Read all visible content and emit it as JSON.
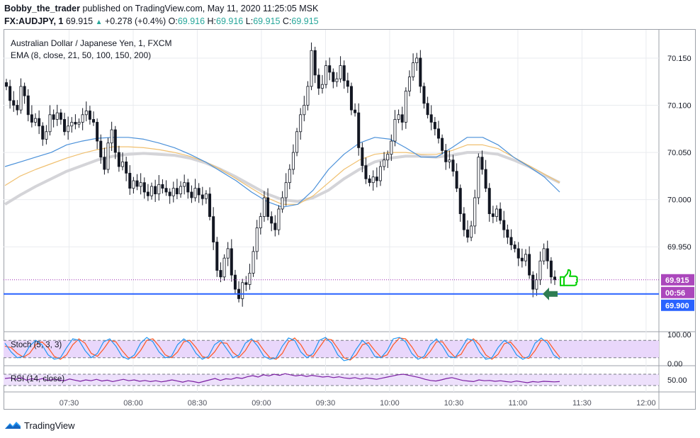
{
  "header": {
    "author": "Bobby_the_trader",
    "published": "published on TradingView.com, May 11, 2020 11:25:05 MSK",
    "symbol": "FX:AUDJPY, 1",
    "last": "69.915",
    "change": "+0.278 (+0.4%)",
    "o_label": "O:",
    "o_value": "69.916",
    "h_label": "H:",
    "h_value": "69.916",
    "l_label": "L:",
    "l_value": "69.915",
    "c_label": "C:",
    "c_value": "69.915"
  },
  "footer": {
    "brand": "TradingView"
  },
  "colors": {
    "up_candle": "#ffffff",
    "down_candle": "#131722",
    "wick": "#131722",
    "ema_fast": "#4a90d9",
    "ema_mid": "#f0c070",
    "ema_slow": "#d4d4d8",
    "support_line": "#2962ff",
    "price_line": "#9c27b0",
    "stoch_k": "#2196f3",
    "stoch_d": "#ff5722",
    "stoch_band": "#e9d7fb",
    "rsi": "#7b1fa2",
    "rsi_band": "#ede0fb",
    "badge_price": "#ab47bc",
    "badge_level": "#2962ff",
    "thumb": "#00d000",
    "arrow": "#2e7d52"
  },
  "chart_data": {
    "type": "candlestick",
    "title": "Australian Dollar / Japanese Yen, 1, FXCM",
    "indicator_label": "EMA (8, close, 21, 50, 100, 150, 200)",
    "ylim": [
      69.86,
      70.18
    ],
    "y_ticks": [
      "70.150",
      "70.100",
      "70.050",
      "70.000",
      "69.950",
      "69.900"
    ],
    "x_ticks": [
      "07:30",
      "08:00",
      "08:30",
      "09:00",
      "09:30",
      "10:00",
      "10:30",
      "11:00",
      "11:30",
      "12:00"
    ],
    "x_range_minutes": [
      7.0,
      12.1
    ],
    "price_badge": "69.915",
    "countdown_badge": "00:56",
    "level_badge": "69.900",
    "support_level": 69.9,
    "closes": [
      70.12,
      70.105,
      70.1,
      70.095,
      70.12,
      70.11,
      70.09,
      70.082,
      70.086,
      70.078,
      70.064,
      70.072,
      70.09,
      70.085,
      70.092,
      70.085,
      70.072,
      70.078,
      70.082,
      70.08,
      70.082,
      70.09,
      70.094,
      70.085,
      70.082,
      70.062,
      70.045,
      70.032,
      70.06,
      70.074,
      70.05,
      70.035,
      70.04,
      70.028,
      70.012,
      70.02,
      70.014,
      70.018,
      70.008,
      70.004,
      70.014,
      70.006,
      70.016,
      70.012,
      70.008,
      70.004,
      70.012,
      70.006,
      70.014,
      70.018,
      70.008,
      70.002,
      70.012,
      70.005,
      70.001,
      70.006,
      69.982,
      69.955,
      69.925,
      69.918,
      69.938,
      69.948,
      69.92,
      69.905,
      69.895,
      69.912,
      69.91,
      69.922,
      69.945,
      69.97,
      69.982,
      70.002,
      69.982,
      69.975,
      69.968,
      69.99,
      70.002,
      70.018,
      70.032,
      70.05,
      70.072,
      70.09,
      70.1,
      70.12,
      70.158,
      70.132,
      70.118,
      70.122,
      70.142,
      70.135,
      70.125,
      70.128,
      70.142,
      70.126,
      70.12,
      70.095,
      70.092,
      70.055,
      70.036,
      70.022,
      70.018,
      70.024,
      70.02,
      70.035,
      70.042,
      70.048,
      70.062,
      70.085,
      70.09,
      70.082,
      70.115,
      70.13,
      70.145,
      70.15,
      70.12,
      70.102,
      70.09,
      70.082,
      70.075,
      70.065,
      70.052,
      70.04,
      70.042,
      70.03,
      70.012,
      69.985,
      69.968,
      69.96,
      69.972,
      70.002,
      70.045,
      70.032,
      70.012,
      69.985,
      69.982,
      69.99,
      69.978,
      69.968,
      69.96,
      69.952,
      69.948,
      69.938,
      69.935,
      69.942,
      69.92,
      69.905,
      69.915,
      69.935,
      69.948,
      69.935,
      69.918,
      69.915
    ],
    "ema_fast": [
      70.035,
      70.04,
      70.045,
      70.05,
      70.058,
      70.062,
      70.065,
      70.066,
      70.066,
      70.064,
      70.06,
      70.055,
      70.048,
      70.04,
      70.03,
      70.02,
      70.008,
      69.998,
      69.992,
      69.995,
      70.01,
      70.032,
      70.048,
      70.06,
      70.066,
      70.064,
      70.055,
      70.045,
      70.045,
      70.055,
      70.066,
      70.066,
      70.058,
      70.045,
      70.035,
      70.024,
      70.008
    ],
    "ema_mid": [
      70.015,
      70.025,
      70.032,
      70.038,
      70.044,
      70.049,
      70.053,
      70.056,
      70.056,
      70.055,
      70.053,
      70.05,
      70.046,
      70.04,
      70.032,
      70.022,
      70.012,
      70.002,
      69.995,
      69.995,
      70.004,
      70.018,
      70.032,
      70.042,
      70.048,
      70.05,
      70.05,
      70.048,
      70.048,
      70.052,
      70.058,
      70.058,
      70.054,
      70.045,
      70.036,
      70.027,
      70.018
    ],
    "ema_slow": [
      69.995,
      70.005,
      70.014,
      70.022,
      70.03,
      70.036,
      70.042,
      70.046,
      70.048,
      70.049,
      70.048,
      70.047,
      70.044,
      70.039,
      70.032,
      70.024,
      70.015,
      70.006,
      70.0,
      69.998,
      70.002,
      70.01,
      70.022,
      70.032,
      70.04,
      70.044,
      70.046,
      70.046,
      70.045,
      70.047,
      70.05,
      70.05,
      70.048,
      70.042,
      70.035,
      70.026,
      70.018
    ],
    "stoch": {
      "label": "Stoch (5, 3, 3)",
      "ylim": [
        0,
        100
      ],
      "y_ticks": [
        "100.00",
        "0.00"
      ],
      "band": [
        20,
        80
      ],
      "k": [
        70,
        40,
        20,
        25,
        60,
        80,
        65,
        30,
        15,
        20,
        55,
        85,
        80,
        45,
        20,
        35,
        75,
        85,
        60,
        25,
        15,
        30,
        70,
        90,
        75,
        40,
        20,
        25,
        65,
        85,
        70,
        35,
        15,
        25,
        65,
        80,
        50,
        20,
        30,
        70,
        85,
        60,
        25,
        15,
        20,
        60,
        88,
        80,
        40,
        20,
        35,
        80,
        90,
        70,
        30,
        10,
        15,
        50,
        80,
        60,
        25,
        20,
        45,
        85,
        90,
        75,
        35,
        15,
        25,
        65,
        85,
        60,
        25,
        20,
        50,
        85,
        80,
        40,
        15,
        20,
        55,
        80,
        65,
        30,
        15,
        25,
        70,
        88,
        70,
        30,
        15
      ],
      "d": [
        60,
        55,
        35,
        22,
        35,
        65,
        75,
        55,
        25,
        15,
        30,
        65,
        85,
        70,
        35,
        25,
        50,
        80,
        75,
        45,
        20,
        20,
        45,
        80,
        85,
        60,
        30,
        20,
        40,
        75,
        80,
        55,
        25,
        18,
        40,
        72,
        70,
        38,
        22,
        45,
        80,
        75,
        45,
        20,
        15,
        35,
        75,
        88,
        65,
        30,
        25,
        55,
        85,
        82,
        52,
        20,
        12,
        30,
        65,
        72,
        45,
        22,
        30,
        65,
        88,
        85,
        58,
        25,
        18,
        42,
        75,
        75,
        45,
        22,
        32,
        68,
        85,
        65,
        30,
        15,
        32,
        68,
        75,
        50,
        22,
        18,
        45,
        80,
        80,
        50,
        22
      ]
    },
    "rsi": {
      "label": "RSI (14, close)",
      "ylim": [
        0,
        100
      ],
      "y_ticks": [
        "50.00"
      ],
      "band": [
        30,
        70
      ],
      "values": [
        55,
        57,
        52,
        58,
        49,
        54,
        50,
        55,
        48,
        52,
        50,
        47,
        53,
        49,
        45,
        50,
        47,
        52,
        46,
        49,
        44,
        48,
        52,
        47,
        50,
        45,
        48,
        44,
        47,
        43,
        46,
        50,
        46,
        42,
        47,
        44,
        40,
        45,
        50,
        55,
        48,
        54,
        52,
        58,
        55,
        61,
        65,
        60,
        68,
        64,
        70,
        66,
        72,
        68,
        64,
        67,
        62,
        66,
        63,
        60,
        62,
        58,
        61,
        57,
        55,
        58,
        53,
        57,
        55,
        52,
        56,
        60,
        64,
        68,
        70,
        66,
        62,
        58,
        52,
        48,
        46,
        50,
        55,
        58,
        53,
        48,
        46,
        44,
        50,
        47,
        48,
        45,
        47,
        44,
        42,
        46,
        43,
        40,
        44,
        42,
        45,
        44,
        43,
        44
      ]
    }
  }
}
